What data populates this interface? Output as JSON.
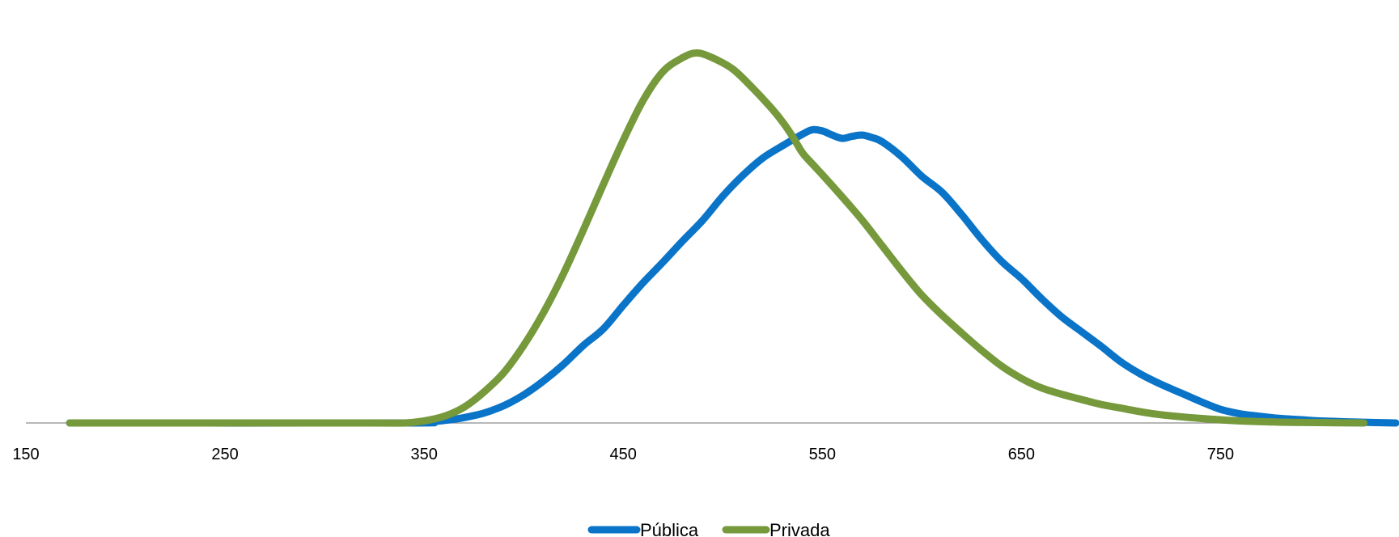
{
  "chart_data": {
    "type": "line",
    "title": "",
    "xlabel": "",
    "ylabel": "",
    "xlim": [
      150,
      838
    ],
    "ylim": [
      0,
      1.0
    ],
    "x_ticks": [
      "150",
      "250",
      "350",
      "450",
      "550",
      "650",
      "750"
    ],
    "x_tick_values": [
      150,
      250,
      350,
      450,
      550,
      650,
      750
    ],
    "y_axis_visible": false,
    "grid": false,
    "legend": "bottom-center",
    "series": [
      {
        "name": "Pública",
        "color": "#0a74c8",
        "points": [
          [
            172,
            0.0
          ],
          [
            340,
            0.0
          ],
          [
            350,
            0.002
          ],
          [
            360,
            0.006
          ],
          [
            370,
            0.013
          ],
          [
            380,
            0.024
          ],
          [
            390,
            0.042
          ],
          [
            400,
            0.068
          ],
          [
            410,
            0.102
          ],
          [
            420,
            0.142
          ],
          [
            430,
            0.188
          ],
          [
            440,
            0.228
          ],
          [
            450,
            0.285
          ],
          [
            460,
            0.34
          ],
          [
            470,
            0.39
          ],
          [
            480,
            0.442
          ],
          [
            490,
            0.492
          ],
          [
            500,
            0.55
          ],
          [
            510,
            0.6
          ],
          [
            520,
            0.642
          ],
          [
            530,
            0.672
          ],
          [
            540,
            0.7
          ],
          [
            545,
            0.711
          ],
          [
            550,
            0.708
          ],
          [
            555,
            0.698
          ],
          [
            560,
            0.69
          ],
          [
            565,
            0.695
          ],
          [
            570,
            0.698
          ],
          [
            575,
            0.692
          ],
          [
            580,
            0.682
          ],
          [
            590,
            0.645
          ],
          [
            600,
            0.598
          ],
          [
            610,
            0.56
          ],
          [
            620,
            0.505
          ],
          [
            630,
            0.445
          ],
          [
            640,
            0.392
          ],
          [
            650,
            0.35
          ],
          [
            660,
            0.302
          ],
          [
            670,
            0.258
          ],
          [
            680,
            0.222
          ],
          [
            690,
            0.186
          ],
          [
            700,
            0.148
          ],
          [
            710,
            0.118
          ],
          [
            720,
            0.094
          ],
          [
            730,
            0.073
          ],
          [
            740,
            0.052
          ],
          [
            750,
            0.033
          ],
          [
            760,
            0.022
          ],
          [
            770,
            0.016
          ],
          [
            780,
            0.011
          ],
          [
            790,
            0.008
          ],
          [
            800,
            0.005
          ],
          [
            820,
            0.002
          ],
          [
            838,
            0.0
          ]
        ]
      },
      {
        "name": "Privada",
        "color": "#76993c",
        "points": [
          [
            172,
            0.0
          ],
          [
            320,
            0.0
          ],
          [
            340,
            0.0
          ],
          [
            350,
            0.005
          ],
          [
            360,
            0.016
          ],
          [
            370,
            0.038
          ],
          [
            380,
            0.075
          ],
          [
            390,
            0.122
          ],
          [
            400,
            0.188
          ],
          [
            410,
            0.268
          ],
          [
            420,
            0.362
          ],
          [
            430,
            0.468
          ],
          [
            440,
            0.578
          ],
          [
            450,
            0.685
          ],
          [
            460,
            0.782
          ],
          [
            470,
            0.852
          ],
          [
            480,
            0.886
          ],
          [
            487,
            0.897
          ],
          [
            495,
            0.885
          ],
          [
            505,
            0.858
          ],
          [
            515,
            0.812
          ],
          [
            525,
            0.76
          ],
          [
            530,
            0.73
          ],
          [
            535,
            0.695
          ],
          [
            540,
            0.655
          ],
          [
            545,
            0.628
          ],
          [
            550,
            0.602
          ],
          [
            560,
            0.548
          ],
          [
            570,
            0.492
          ],
          [
            580,
            0.43
          ],
          [
            590,
            0.368
          ],
          [
            600,
            0.31
          ],
          [
            610,
            0.262
          ],
          [
            620,
            0.218
          ],
          [
            630,
            0.176
          ],
          [
            640,
            0.138
          ],
          [
            650,
            0.108
          ],
          [
            660,
            0.085
          ],
          [
            670,
            0.07
          ],
          [
            680,
            0.057
          ],
          [
            690,
            0.045
          ],
          [
            700,
            0.036
          ],
          [
            710,
            0.027
          ],
          [
            720,
            0.02
          ],
          [
            740,
            0.011
          ],
          [
            760,
            0.005
          ],
          [
            780,
            0.002
          ],
          [
            800,
            0.001
          ],
          [
            822,
            0.0
          ]
        ]
      }
    ]
  }
}
